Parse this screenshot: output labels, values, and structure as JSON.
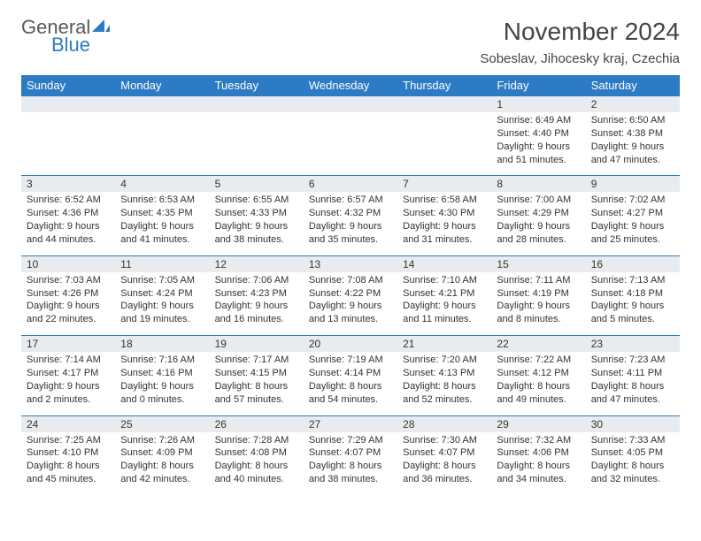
{
  "logo": {
    "top": "General",
    "bottom": "Blue"
  },
  "title": "November 2024",
  "location": "Sobeslav, Jihocesky kraj, Czechia",
  "colors": {
    "header_bg": "#2d7bc4",
    "header_text": "#ffffff",
    "daynum_bg": "#e8ecef",
    "row_border": "#2d7bc4",
    "logo_top": "#555a60",
    "logo_bottom": "#2d7bc4",
    "body_text": "#333333",
    "background": "#ffffff"
  },
  "typography": {
    "title_fontsize": 28,
    "location_fontsize": 15,
    "header_fontsize": 13,
    "daynum_fontsize": 12,
    "content_fontsize": 11,
    "logo_fontsize": 22
  },
  "day_headers": [
    "Sunday",
    "Monday",
    "Tuesday",
    "Wednesday",
    "Thursday",
    "Friday",
    "Saturday"
  ],
  "weeks": [
    [
      {
        "num": "",
        "sunrise": "",
        "sunset": "",
        "daylight": ""
      },
      {
        "num": "",
        "sunrise": "",
        "sunset": "",
        "daylight": ""
      },
      {
        "num": "",
        "sunrise": "",
        "sunset": "",
        "daylight": ""
      },
      {
        "num": "",
        "sunrise": "",
        "sunset": "",
        "daylight": ""
      },
      {
        "num": "",
        "sunrise": "",
        "sunset": "",
        "daylight": ""
      },
      {
        "num": "1",
        "sunrise": "Sunrise: 6:49 AM",
        "sunset": "Sunset: 4:40 PM",
        "daylight": "Daylight: 9 hours and 51 minutes."
      },
      {
        "num": "2",
        "sunrise": "Sunrise: 6:50 AM",
        "sunset": "Sunset: 4:38 PM",
        "daylight": "Daylight: 9 hours and 47 minutes."
      }
    ],
    [
      {
        "num": "3",
        "sunrise": "Sunrise: 6:52 AM",
        "sunset": "Sunset: 4:36 PM",
        "daylight": "Daylight: 9 hours and 44 minutes."
      },
      {
        "num": "4",
        "sunrise": "Sunrise: 6:53 AM",
        "sunset": "Sunset: 4:35 PM",
        "daylight": "Daylight: 9 hours and 41 minutes."
      },
      {
        "num": "5",
        "sunrise": "Sunrise: 6:55 AM",
        "sunset": "Sunset: 4:33 PM",
        "daylight": "Daylight: 9 hours and 38 minutes."
      },
      {
        "num": "6",
        "sunrise": "Sunrise: 6:57 AM",
        "sunset": "Sunset: 4:32 PM",
        "daylight": "Daylight: 9 hours and 35 minutes."
      },
      {
        "num": "7",
        "sunrise": "Sunrise: 6:58 AM",
        "sunset": "Sunset: 4:30 PM",
        "daylight": "Daylight: 9 hours and 31 minutes."
      },
      {
        "num": "8",
        "sunrise": "Sunrise: 7:00 AM",
        "sunset": "Sunset: 4:29 PM",
        "daylight": "Daylight: 9 hours and 28 minutes."
      },
      {
        "num": "9",
        "sunrise": "Sunrise: 7:02 AM",
        "sunset": "Sunset: 4:27 PM",
        "daylight": "Daylight: 9 hours and 25 minutes."
      }
    ],
    [
      {
        "num": "10",
        "sunrise": "Sunrise: 7:03 AM",
        "sunset": "Sunset: 4:26 PM",
        "daylight": "Daylight: 9 hours and 22 minutes."
      },
      {
        "num": "11",
        "sunrise": "Sunrise: 7:05 AM",
        "sunset": "Sunset: 4:24 PM",
        "daylight": "Daylight: 9 hours and 19 minutes."
      },
      {
        "num": "12",
        "sunrise": "Sunrise: 7:06 AM",
        "sunset": "Sunset: 4:23 PM",
        "daylight": "Daylight: 9 hours and 16 minutes."
      },
      {
        "num": "13",
        "sunrise": "Sunrise: 7:08 AM",
        "sunset": "Sunset: 4:22 PM",
        "daylight": "Daylight: 9 hours and 13 minutes."
      },
      {
        "num": "14",
        "sunrise": "Sunrise: 7:10 AM",
        "sunset": "Sunset: 4:21 PM",
        "daylight": "Daylight: 9 hours and 11 minutes."
      },
      {
        "num": "15",
        "sunrise": "Sunrise: 7:11 AM",
        "sunset": "Sunset: 4:19 PM",
        "daylight": "Daylight: 9 hours and 8 minutes."
      },
      {
        "num": "16",
        "sunrise": "Sunrise: 7:13 AM",
        "sunset": "Sunset: 4:18 PM",
        "daylight": "Daylight: 9 hours and 5 minutes."
      }
    ],
    [
      {
        "num": "17",
        "sunrise": "Sunrise: 7:14 AM",
        "sunset": "Sunset: 4:17 PM",
        "daylight": "Daylight: 9 hours and 2 minutes."
      },
      {
        "num": "18",
        "sunrise": "Sunrise: 7:16 AM",
        "sunset": "Sunset: 4:16 PM",
        "daylight": "Daylight: 9 hours and 0 minutes."
      },
      {
        "num": "19",
        "sunrise": "Sunrise: 7:17 AM",
        "sunset": "Sunset: 4:15 PM",
        "daylight": "Daylight: 8 hours and 57 minutes."
      },
      {
        "num": "20",
        "sunrise": "Sunrise: 7:19 AM",
        "sunset": "Sunset: 4:14 PM",
        "daylight": "Daylight: 8 hours and 54 minutes."
      },
      {
        "num": "21",
        "sunrise": "Sunrise: 7:20 AM",
        "sunset": "Sunset: 4:13 PM",
        "daylight": "Daylight: 8 hours and 52 minutes."
      },
      {
        "num": "22",
        "sunrise": "Sunrise: 7:22 AM",
        "sunset": "Sunset: 4:12 PM",
        "daylight": "Daylight: 8 hours and 49 minutes."
      },
      {
        "num": "23",
        "sunrise": "Sunrise: 7:23 AM",
        "sunset": "Sunset: 4:11 PM",
        "daylight": "Daylight: 8 hours and 47 minutes."
      }
    ],
    [
      {
        "num": "24",
        "sunrise": "Sunrise: 7:25 AM",
        "sunset": "Sunset: 4:10 PM",
        "daylight": "Daylight: 8 hours and 45 minutes."
      },
      {
        "num": "25",
        "sunrise": "Sunrise: 7:26 AM",
        "sunset": "Sunset: 4:09 PM",
        "daylight": "Daylight: 8 hours and 42 minutes."
      },
      {
        "num": "26",
        "sunrise": "Sunrise: 7:28 AM",
        "sunset": "Sunset: 4:08 PM",
        "daylight": "Daylight: 8 hours and 40 minutes."
      },
      {
        "num": "27",
        "sunrise": "Sunrise: 7:29 AM",
        "sunset": "Sunset: 4:07 PM",
        "daylight": "Daylight: 8 hours and 38 minutes."
      },
      {
        "num": "28",
        "sunrise": "Sunrise: 7:30 AM",
        "sunset": "Sunset: 4:07 PM",
        "daylight": "Daylight: 8 hours and 36 minutes."
      },
      {
        "num": "29",
        "sunrise": "Sunrise: 7:32 AM",
        "sunset": "Sunset: 4:06 PM",
        "daylight": "Daylight: 8 hours and 34 minutes."
      },
      {
        "num": "30",
        "sunrise": "Sunrise: 7:33 AM",
        "sunset": "Sunset: 4:05 PM",
        "daylight": "Daylight: 8 hours and 32 minutes."
      }
    ]
  ]
}
